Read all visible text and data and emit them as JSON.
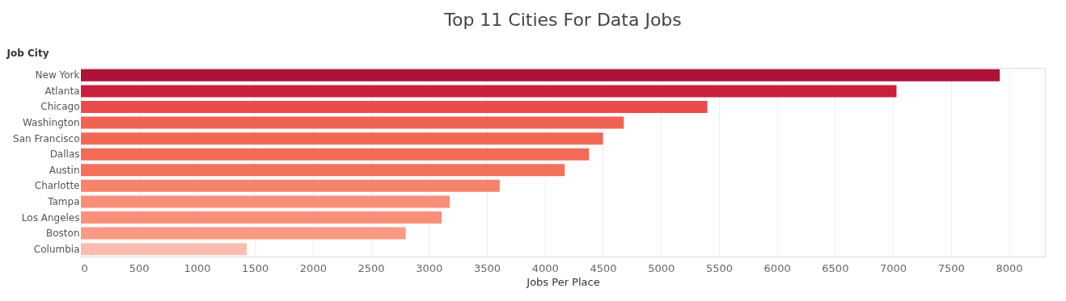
{
  "chart_data": {
    "type": "bar",
    "orientation": "horizontal",
    "title": "Top 11 Cities For Data Jobs",
    "xlabel": "Jobs Per Place",
    "ylabel": "Job City",
    "categories": [
      "New York",
      "Atlanta",
      "Chicago",
      "Washington",
      "San Francisco",
      "Dallas",
      "Austin",
      "Charlotte",
      "Tampa",
      "Los Angeles",
      "Boston",
      "Columbia"
    ],
    "values": [
      7920,
      7030,
      5400,
      4680,
      4500,
      4380,
      4170,
      3610,
      3180,
      3110,
      2800,
      1430
    ],
    "colors": [
      "#ad1237",
      "#c8203d",
      "#e94c4a",
      "#f06352",
      "#f26855",
      "#f36b58",
      "#f3705b",
      "#f7836c",
      "#f98e78",
      "#f99079",
      "#fa9a85",
      "#fcbcb0"
    ],
    "xlim": [
      0,
      8310
    ],
    "xticks": [
      0,
      500,
      1000,
      1500,
      2000,
      2500,
      3000,
      3500,
      4000,
      4500,
      5000,
      5500,
      6000,
      6500,
      7000,
      7500,
      8000
    ],
    "grid": "x",
    "legend": false
  }
}
